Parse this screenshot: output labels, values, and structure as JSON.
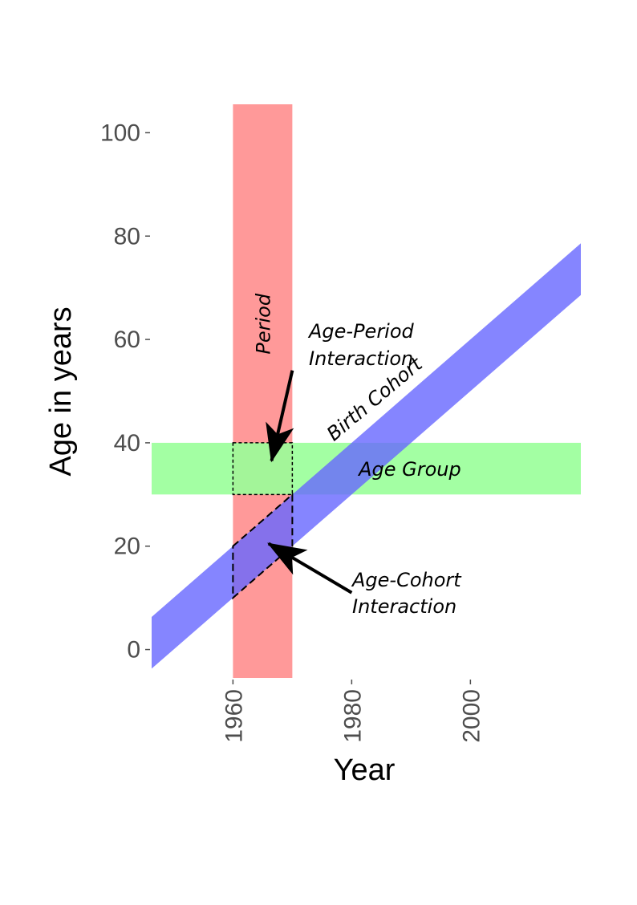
{
  "chart_data": {
    "type": "diagram",
    "xlabel": "Year",
    "ylabel": "Age in years",
    "x_ticks": [
      1960,
      1980,
      2000
    ],
    "y_ticks": [
      0,
      20,
      40,
      60,
      80,
      100
    ],
    "x_range": [
      1946.3,
      2018.6
    ],
    "y_range": [
      -5.5,
      105.5
    ],
    "bands": {
      "period": {
        "label": "Period",
        "x_from": 1960,
        "x_to": 1970,
        "color": "#ff9999"
      },
      "age_group": {
        "label": "Age Group",
        "y_from": 30,
        "y_to": 40,
        "color": "#99ff99"
      },
      "birth_cohort": {
        "label": "Birth Cohort",
        "birth_year_from": 1940,
        "birth_year_to": 1950,
        "color": "#6666ff"
      }
    },
    "interactions": {
      "age_period": {
        "line1": "Age-Period",
        "line2": "Interaction"
      },
      "age_cohort": {
        "line1": "Age-Cohort",
        "line2": "Interaction"
      }
    }
  }
}
